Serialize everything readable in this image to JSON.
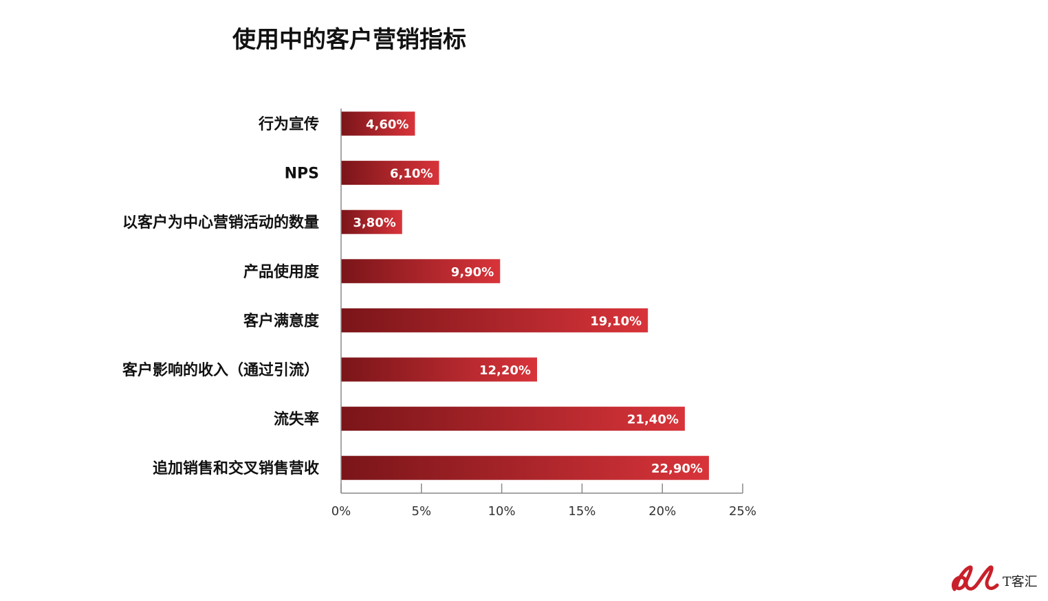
{
  "chart_data": {
    "type": "bar",
    "orientation": "horizontal",
    "title": "使用中的客户营销指标",
    "categories": [
      "行为宣传",
      "NPS",
      "以客户为中心营销活动的数量",
      "产品使用度",
      "客户满意度",
      "客户影响的收入（通过引流）",
      "流失率",
      "追加销售和交叉销售营收"
    ],
    "values": [
      4.6,
      6.1,
      3.8,
      9.9,
      19.1,
      12.2,
      21.4,
      22.9
    ],
    "value_labels": [
      "4,60%",
      "6,10%",
      "3,80%",
      "9,90%",
      "19,10%",
      "12,20%",
      "21,40%",
      "22,90%"
    ],
    "xlim": [
      0,
      25
    ],
    "x_ticks": [
      "0%",
      "5%",
      "10%",
      "15%",
      "20%",
      "25%"
    ],
    "xlabel": "",
    "ylabel": "",
    "grid": false,
    "legend": "none",
    "colors": {
      "bar_dark": "#7a1519",
      "bar_light": "#d8343a"
    }
  },
  "watermark": {
    "text": "T客汇"
  }
}
